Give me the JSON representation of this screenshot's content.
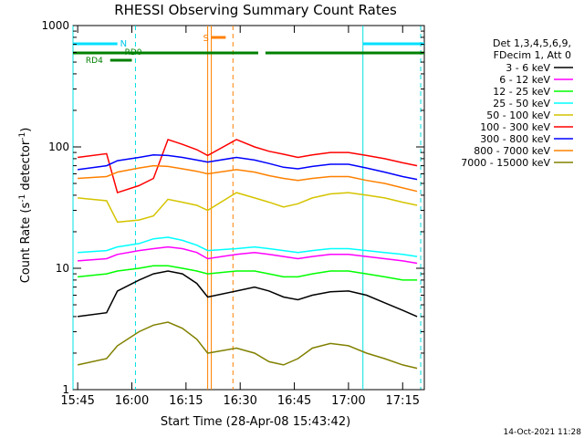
{
  "chart_data": {
    "type": "line",
    "title": "RHESSI Observing Summary Count Rates",
    "xlabel": "Start Time (28-Apr-08 15:43:42)",
    "ylabel_main": "Count Rate (s",
    "ylabel_sup1": "-1",
    "ylabel_mid": " detector",
    "ylabel_sup2": "-1",
    "ylabel_end": ")",
    "yscale": "log",
    "xlim": [
      "15:43:42",
      "17:21:00"
    ],
    "ylim": [
      1,
      1000
    ],
    "xticks": [
      "15:45",
      "16:00",
      "16:15",
      "16:30",
      "16:45",
      "17:00",
      "17:15"
    ],
    "yticks": [
      "1",
      "10",
      "100",
      "1000"
    ],
    "legend_header": [
      "Det 1,3,4,5,6,9,",
      "FDecim 1, Att 0"
    ],
    "legend_position": "right",
    "footer_date": "14-Oct-2021 11:28",
    "flags": {
      "night_label": "N",
      "saa_label": "S",
      "rd0_label": "RD0",
      "rd4_label": "RD4",
      "night": [
        [
          "15:43:42",
          "15:56:00"
        ],
        [
          "17:04:00",
          "17:21:00"
        ]
      ],
      "saa": [
        [
          "16:22:00",
          "16:26:00"
        ]
      ],
      "rd0": [
        [
          "15:43:42",
          "16:35:00"
        ],
        [
          "16:37:00",
          "17:21:00"
        ]
      ],
      "rd4": [
        [
          "15:54:00",
          "16:00:00"
        ]
      ]
    },
    "vlines": {
      "night_solid": [
        "15:43:42",
        "17:04:00"
      ],
      "night_dashed": [
        "16:01:00",
        "17:20:00"
      ],
      "saa_solid": [
        "16:21:00",
        "16:22:00"
      ],
      "saa_dashed": [
        "16:28:00"
      ]
    },
    "series": [
      {
        "name": "3 - 6 keV",
        "color": "#000000",
        "x": [
          "15:45",
          "15:53",
          "15:56",
          "16:02",
          "16:06",
          "16:10",
          "16:14",
          "16:18",
          "16:21",
          "16:29",
          "16:34",
          "16:38",
          "16:42",
          "16:46",
          "16:50",
          "16:55",
          "17:00",
          "17:05",
          "17:10",
          "17:15",
          "17:19"
        ],
        "y": [
          4,
          4.3,
          6.5,
          8,
          9,
          9.5,
          9,
          7.5,
          5.8,
          6.5,
          7,
          6.5,
          5.8,
          5.5,
          6,
          6.4,
          6.5,
          6,
          5.2,
          4.5,
          4
        ]
      },
      {
        "name": "6 - 12 keV",
        "color": "#ff00ff",
        "x": [
          "15:45",
          "15:53",
          "15:56",
          "16:02",
          "16:06",
          "16:10",
          "16:14",
          "16:18",
          "16:21",
          "16:29",
          "16:34",
          "16:38",
          "16:42",
          "16:46",
          "16:50",
          "16:55",
          "17:00",
          "17:05",
          "17:10",
          "17:15",
          "17:19"
        ],
        "y": [
          11.5,
          12,
          13,
          14,
          14.5,
          15,
          14.5,
          13.5,
          12,
          13,
          13.5,
          13,
          12.5,
          12,
          12.5,
          13,
          13,
          12.5,
          12,
          11.5,
          11
        ]
      },
      {
        "name": "12 - 25 keV",
        "color": "#00ff00",
        "x": [
          "15:45",
          "15:53",
          "15:56",
          "16:02",
          "16:06",
          "16:10",
          "16:14",
          "16:18",
          "16:21",
          "16:29",
          "16:34",
          "16:38",
          "16:42",
          "16:46",
          "16:50",
          "16:55",
          "17:00",
          "17:05",
          "17:10",
          "17:15",
          "17:19"
        ],
        "y": [
          8.5,
          9,
          9.5,
          10,
          10.5,
          10.5,
          10,
          9.5,
          9,
          9.5,
          9.5,
          9,
          8.5,
          8.5,
          9,
          9.5,
          9.5,
          9,
          8.5,
          8,
          8
        ]
      },
      {
        "name": "25 - 50 keV",
        "color": "#00ffff",
        "x": [
          "15:45",
          "15:53",
          "15:56",
          "16:02",
          "16:06",
          "16:10",
          "16:14",
          "16:18",
          "16:21",
          "16:29",
          "16:34",
          "16:38",
          "16:42",
          "16:46",
          "16:50",
          "16:55",
          "17:00",
          "17:05",
          "17:10",
          "17:15",
          "17:19"
        ],
        "y": [
          13.5,
          14,
          15,
          16,
          17.5,
          18,
          17,
          15.5,
          14,
          14.5,
          15,
          14.5,
          14,
          13.5,
          14,
          14.5,
          14.5,
          14,
          13.5,
          13,
          12.5
        ]
      },
      {
        "name": "50 - 100 keV",
        "color": "#d4c400",
        "x": [
          "15:45",
          "15:53",
          "15:56",
          "16:02",
          "16:06",
          "16:10",
          "16:14",
          "16:18",
          "16:21",
          "16:29",
          "16:34",
          "16:38",
          "16:42",
          "16:46",
          "16:50",
          "16:55",
          "17:00",
          "17:05",
          "17:10",
          "17:15",
          "17:19"
        ],
        "y": [
          38,
          36,
          24,
          25,
          27,
          37,
          35,
          33,
          30,
          42,
          38,
          35,
          32,
          34,
          38,
          41,
          42,
          40,
          38,
          35,
          33
        ]
      },
      {
        "name": "100 - 300 keV",
        "color": "#ff0000",
        "x": [
          "15:45",
          "15:53",
          "15:56",
          "16:02",
          "16:06",
          "16:10",
          "16:14",
          "16:18",
          "16:21",
          "16:29",
          "16:34",
          "16:38",
          "16:42",
          "16:46",
          "16:50",
          "16:55",
          "17:00",
          "17:05",
          "17:10",
          "17:15",
          "17:19"
        ],
        "y": [
          82,
          88,
          42,
          48,
          55,
          115,
          105,
          95,
          85,
          115,
          100,
          92,
          87,
          82,
          86,
          90,
          90,
          85,
          80,
          74,
          70
        ]
      },
      {
        "name": "300 - 800 keV",
        "color": "#0000ff",
        "x": [
          "15:45",
          "15:53",
          "15:56",
          "16:02",
          "16:06",
          "16:10",
          "16:14",
          "16:18",
          "16:21",
          "16:29",
          "16:34",
          "16:38",
          "16:42",
          "16:46",
          "16:50",
          "16:55",
          "17:00",
          "17:05",
          "17:10",
          "17:15",
          "17:19"
        ],
        "y": [
          65,
          70,
          77,
          82,
          86,
          85,
          82,
          78,
          75,
          82,
          78,
          73,
          68,
          66,
          69,
          72,
          72,
          67,
          62,
          57,
          54
        ]
      },
      {
        "name": "800 - 7000 keV",
        "color": "#ff8000",
        "x": [
          "15:45",
          "15:53",
          "15:56",
          "16:02",
          "16:06",
          "16:10",
          "16:14",
          "16:18",
          "16:21",
          "16:29",
          "16:34",
          "16:38",
          "16:42",
          "16:46",
          "16:50",
          "16:55",
          "17:00",
          "17:05",
          "17:10",
          "17:15",
          "17:19"
        ],
        "y": [
          55,
          57,
          62,
          67,
          70,
          69,
          66,
          63,
          60,
          65,
          62,
          58,
          55,
          53,
          55,
          57,
          57,
          53,
          50,
          46,
          43
        ]
      },
      {
        "name": "7000 - 15000 keV",
        "color": "#808000",
        "x": [
          "15:45",
          "15:53",
          "15:56",
          "16:02",
          "16:06",
          "16:10",
          "16:14",
          "16:18",
          "16:21",
          "16:29",
          "16:34",
          "16:38",
          "16:42",
          "16:46",
          "16:50",
          "16:55",
          "17:00",
          "17:05",
          "17:10",
          "17:15",
          "17:19"
        ],
        "y": [
          1.6,
          1.8,
          2.3,
          3,
          3.4,
          3.6,
          3.2,
          2.6,
          2.0,
          2.2,
          2.0,
          1.7,
          1.6,
          1.8,
          2.2,
          2.4,
          2.3,
          2.0,
          1.8,
          1.6,
          1.5
        ]
      }
    ]
  }
}
